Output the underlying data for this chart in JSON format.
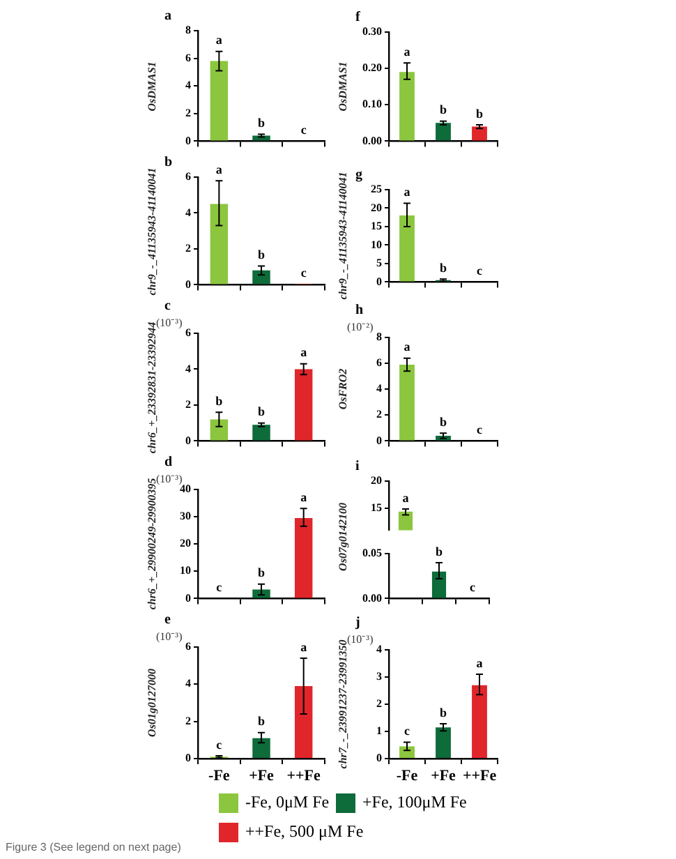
{
  "chart_data": [
    {
      "type": "bar",
      "title": "a",
      "ylabel": "OsDMAS1",
      "categories": [
        null,
        null,
        null
      ],
      "ylim": [
        0,
        8
      ],
      "yticks": [
        0,
        2,
        4,
        6,
        8
      ],
      "grid": false,
      "tick_labels": "y",
      "series": [
        {
          "color": "#8cc63f",
          "values": [
            5.8,
            null,
            null
          ],
          "errors": [
            0.7,
            null,
            null
          ],
          "value_labels": [
            "a",
            null,
            null
          ]
        },
        {
          "color": "#0e6b3a",
          "values": [
            null,
            0.4,
            null
          ],
          "errors": [
            null,
            0.1,
            null
          ],
          "value_labels": [
            null,
            "b",
            null
          ]
        },
        {
          "color": "#e0262b",
          "values": [
            null,
            null,
            0
          ],
          "value_labels": [
            null,
            null,
            "c"
          ]
        }
      ]
    },
    {
      "type": "bar",
      "title": "b",
      "ylabel": "chr9_-_41135943-41140041",
      "categories": [
        null,
        null,
        null
      ],
      "ylim": [
        0,
        6
      ],
      "yticks": [
        0,
        2,
        4,
        6
      ],
      "grid": false,
      "tick_labels": "y",
      "series": [
        {
          "color": "#8cc63f",
          "values": [
            4.5,
            null,
            null
          ],
          "errors": [
            [
              3.3,
              5.8
            ],
            null,
            null
          ],
          "value_labels": [
            "a",
            null,
            null
          ]
        },
        {
          "color": "#0e6b3a",
          "values": [
            null,
            0.8,
            null
          ],
          "errors": [
            null,
            0.25,
            null
          ],
          "value_labels": [
            null,
            "b",
            null
          ]
        },
        {
          "color": "#e0262b",
          "values": [
            null,
            null,
            0.05
          ],
          "value_labels": [
            null,
            null,
            "c"
          ]
        }
      ]
    },
    {
      "type": "bar",
      "title": "c",
      "subtitle": "(10⁻³)",
      "ylabel": "chr6_+_23392831-23392944",
      "categories": [
        null,
        null,
        null
      ],
      "ylim": [
        0,
        6
      ],
      "yticks": [
        0,
        2,
        4,
        6
      ],
      "grid": false,
      "tick_labels": "y",
      "series": [
        {
          "color": "#8cc63f",
          "values": [
            1.2,
            null,
            null
          ],
          "errors": [
            0.4,
            null,
            null
          ],
          "value_labels": [
            "b",
            null,
            null
          ]
        },
        {
          "color": "#0e6b3a",
          "values": [
            null,
            0.9,
            null
          ],
          "errors": [
            null,
            0.1,
            null
          ],
          "value_labels": [
            null,
            "b",
            null
          ]
        },
        {
          "color": "#e0262b",
          "values": [
            null,
            null,
            4.0
          ],
          "errors": [
            null,
            null,
            0.3
          ],
          "value_labels": [
            null,
            null,
            "a"
          ]
        }
      ]
    },
    {
      "type": "bar",
      "title": "d",
      "subtitle": "(10⁻³)",
      "ylabel": "chr6_+_29900249-29900395",
      "categories": [
        null,
        null,
        null
      ],
      "ylim": [
        0,
        40
      ],
      "yticks": [
        0,
        10,
        20,
        30,
        40
      ],
      "grid": false,
      "tick_labels": "y",
      "series": [
        {
          "color": "#8cc63f",
          "values": [
            0,
            null,
            null
          ],
          "value_labels": [
            "c",
            null,
            null
          ]
        },
        {
          "color": "#0e6b3a",
          "values": [
            null,
            3.3,
            null
          ],
          "errors": [
            null,
            2,
            null
          ],
          "value_labels": [
            null,
            "b",
            null
          ]
        },
        {
          "color": "#e0262b",
          "values": [
            null,
            null,
            29.5
          ],
          "errors": [
            null,
            null,
            [
              26.5,
              33
            ]
          ],
          "value_labels": [
            null,
            null,
            "a"
          ]
        }
      ]
    },
    {
      "type": "bar",
      "title": "e",
      "subtitle": "(10⁻³)",
      "ylabel": "Os01g0127000",
      "categories": [
        "-Fe",
        "+Fe",
        "++Fe"
      ],
      "ylim": [
        0,
        6
      ],
      "yticks": [
        0,
        2,
        4,
        6
      ],
      "grid": false,
      "legend": "bottom",
      "series": [
        {
          "name": "-Fe, 0μM Fe",
          "color": "#8cc63f",
          "values": [
            0.1,
            null,
            null
          ],
          "errors": [
            0.05,
            null,
            null
          ],
          "value_labels": [
            "c",
            null,
            null
          ]
        },
        {
          "name": "+Fe, 100μM Fe",
          "color": "#0e6b3a",
          "values": [
            null,
            1.1,
            null
          ],
          "errors": [
            null,
            [
              0.85,
              1.4
            ],
            null
          ],
          "value_labels": [
            null,
            "b",
            null
          ]
        },
        {
          "name": "++Fe, 500 μM Fe",
          "color": "#e0262b",
          "values": [
            null,
            null,
            3.9
          ],
          "errors": [
            null,
            null,
            1.5
          ],
          "value_labels": [
            null,
            null,
            "a"
          ]
        }
      ]
    },
    {
      "type": "bar",
      "title": "f",
      "ylabel": "OsDMAS1",
      "categories": [
        null,
        null,
        null
      ],
      "ylim": [
        0,
        0.3
      ],
      "yticks": [
        {
          "value": 0,
          "label": "0.00"
        },
        {
          "value": 0.1,
          "label": "0.10"
        },
        {
          "value": 0.2,
          "label": "0.20"
        },
        {
          "value": 0.3,
          "label": "0.30"
        }
      ],
      "grid": false,
      "tick_labels": "y",
      "series": [
        {
          "color": "#8cc63f",
          "values": [
            0.19,
            null,
            null
          ],
          "errors": [
            [
              0.17,
              0.215
            ],
            null,
            null
          ],
          "value_labels": [
            "a",
            null,
            null
          ]
        },
        {
          "color": "#0e6b3a",
          "values": [
            null,
            0.05,
            null
          ],
          "errors": [
            null,
            0.005,
            null
          ],
          "value_labels": [
            null,
            "b",
            null
          ]
        },
        {
          "color": "#e0262b",
          "values": [
            null,
            null,
            0.04
          ],
          "errors": [
            null,
            null,
            0.005
          ],
          "value_labels": [
            null,
            null,
            "b"
          ]
        }
      ]
    },
    {
      "type": "bar",
      "title": "g",
      "ylabel": "chr9_-_41135943-41140041",
      "categories": [
        null,
        null,
        null
      ],
      "ylim": [
        0,
        25
      ],
      "yticks": [
        0,
        5,
        10,
        15,
        20,
        25
      ],
      "grid": false,
      "tick_labels": "y",
      "series": [
        {
          "color": "#8cc63f",
          "values": [
            18,
            null,
            null
          ],
          "errors": [
            [
              15,
              21.3
            ],
            null,
            null
          ],
          "value_labels": [
            "a",
            null,
            null
          ]
        },
        {
          "color": "#0e6b3a",
          "values": [
            null,
            0.5,
            null
          ],
          "errors": [
            null,
            0.3,
            null
          ],
          "value_labels": [
            null,
            "b",
            null
          ]
        },
        {
          "color": "#e0262b",
          "values": [
            null,
            null,
            0
          ],
          "value_labels": [
            null,
            null,
            "c"
          ]
        }
      ]
    },
    {
      "type": "bar",
      "title": "h",
      "subtitle": "(10⁻²)",
      "ylabel": "OsFRO2",
      "categories": [
        null,
        null,
        null
      ],
      "ylim": [
        0,
        8
      ],
      "yticks": [
        0,
        2,
        4,
        6,
        8
      ],
      "grid": false,
      "tick_labels": "y",
      "series": [
        {
          "color": "#8cc63f",
          "values": [
            5.9,
            null,
            null
          ],
          "errors": [
            0.5,
            null,
            null
          ],
          "value_labels": [
            "a",
            null,
            null
          ]
        },
        {
          "color": "#0e6b3a",
          "values": [
            null,
            0.4,
            null
          ],
          "errors": [
            null,
            0.2,
            null
          ],
          "value_labels": [
            null,
            "b",
            null
          ]
        },
        {
          "color": "#e0262b",
          "values": [
            null,
            null,
            0
          ],
          "value_labels": [
            null,
            null,
            "c"
          ]
        }
      ]
    },
    {
      "type": "bar",
      "title": "i",
      "ylabel": "Os07g0142100",
      "categories": [
        null
      ],
      "ylim": [
        11,
        20
      ],
      "yticks": [
        15,
        20
      ],
      "grid": false,
      "tick_labels": "y",
      "series": [
        {
          "color": "#8cc63f",
          "values": [
            14.4
          ],
          "errors": [
            [
              13.8,
              14.9
            ]
          ],
          "value_labels": [
            "a"
          ]
        }
      ]
    },
    {
      "type": "bar",
      "categories": [
        null,
        null,
        null
      ],
      "ylim": [
        0,
        0.05
      ],
      "yticks": [
        {
          "value": 0,
          "label": "0.00"
        },
        {
          "value": 0.05,
          "label": "0.05"
        }
      ],
      "grid": false,
      "tick_labels": "y",
      "series": [
        {
          "color": "#0e6b3a",
          "values": [
            null,
            0.03,
            null
          ],
          "errors": [
            null,
            [
              0.022,
              0.04
            ],
            null
          ],
          "value_labels": [
            null,
            "b",
            null
          ]
        },
        {
          "color": "#e0262b",
          "values": [
            null,
            null,
            0
          ],
          "value_labels": [
            null,
            null,
            "c"
          ]
        }
      ]
    },
    {
      "type": "bar",
      "title": "j",
      "subtitle": "(10⁻³)",
      "ylabel": "chr7_-_23991237-23991350",
      "categories": [
        "-Fe",
        "+Fe",
        "++Fe"
      ],
      "ylim": [
        0,
        4
      ],
      "yticks": [
        0,
        1,
        2,
        3,
        4
      ],
      "grid": false,
      "annotations": [
        "Figure 3 (See legend on next page)"
      ],
      "series": [
        {
          "color": "#8cc63f",
          "values": [
            0.45,
            null,
            null
          ],
          "errors": [
            0.15,
            null,
            null
          ],
          "value_labels": [
            "c",
            null,
            null
          ]
        },
        {
          "color": "#0e6b3a",
          "values": [
            null,
            1.15,
            null
          ],
          "errors": [
            null,
            0.13,
            null
          ],
          "value_labels": [
            null,
            "b",
            null
          ]
        },
        {
          "color": "#e0262b",
          "values": [
            null,
            null,
            2.7
          ],
          "errors": [
            null,
            null,
            [
              2.35,
              3.1
            ]
          ],
          "value_labels": [
            null,
            null,
            "a"
          ]
        }
      ]
    }
  ]
}
